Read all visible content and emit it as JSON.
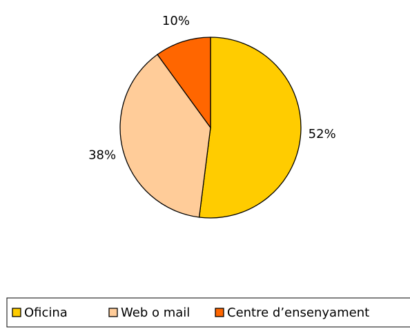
{
  "chart_data": {
    "type": "pie",
    "categories": [
      "Oficina",
      "Web o mail",
      "Centre d’ensenyament"
    ],
    "values": [
      52,
      38,
      10
    ],
    "value_labels": [
      "52%",
      "38%",
      "10%"
    ],
    "colors": [
      "#FFCC00",
      "#FFCC99",
      "#FF6600"
    ],
    "legend": "bottom"
  }
}
